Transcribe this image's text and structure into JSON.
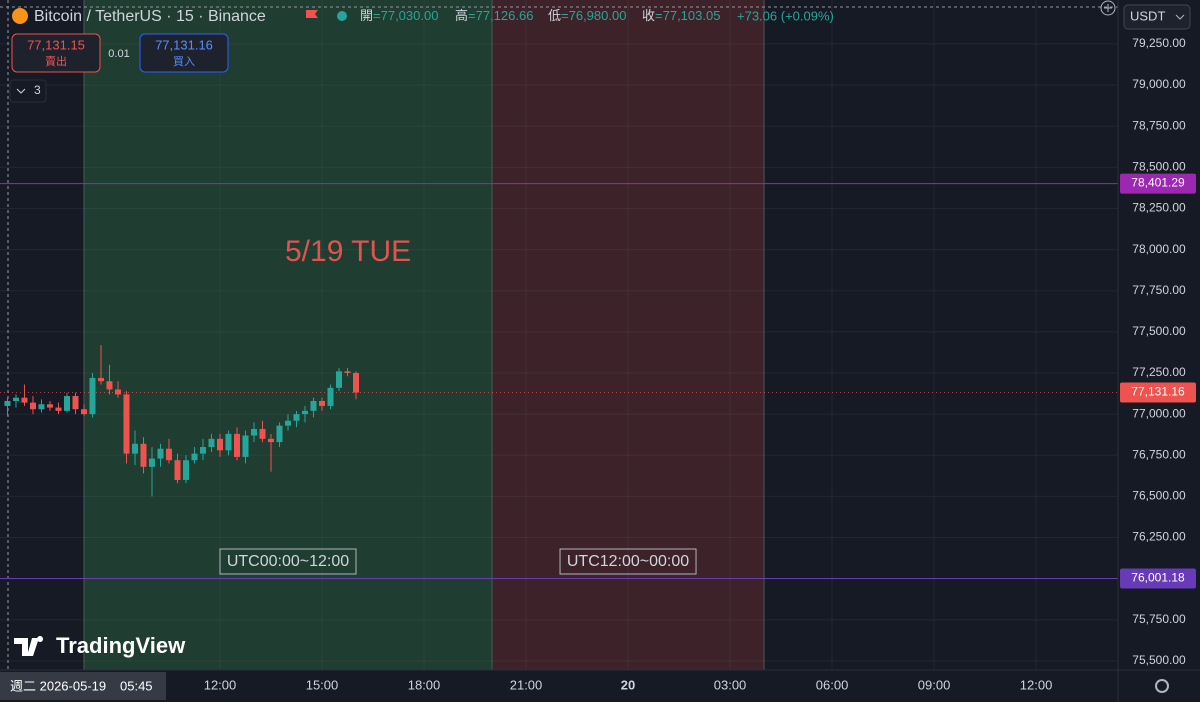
{
  "header": {
    "symbol": "Bitcoin / TetherUS · 15 · Binance",
    "ohlc": [
      {
        "label": "開",
        "value": "=77,030.00"
      },
      {
        "label": "高",
        "value": "=77,126.66"
      },
      {
        "label": "低",
        "value": "=76,980.00"
      },
      {
        "label": "收",
        "value": "=77,103.05"
      }
    ],
    "change": "+73.06 (+0.09%)"
  },
  "trade": {
    "sell_price": "77,131.15",
    "sell_label": "賣出",
    "quantity": "0.01",
    "buy_price": "77,131.16",
    "buy_label": "買入"
  },
  "indicators_count": "3",
  "currency": "USDT",
  "crosshair_date": "週二 2026-05-19",
  "crosshair_time": "05:45",
  "logo": "TradingView",
  "chart_data": {
    "type": "candlestick",
    "x": [
      5.75,
      6,
      6.25,
      6.5,
      6.75,
      7,
      7.25,
      7.5,
      7.75,
      8,
      8.25,
      8.5,
      8.75,
      9,
      9.25,
      9.5,
      9.75,
      10,
      10.25,
      10.5,
      10.75,
      11,
      11.25,
      11.5,
      11.75,
      12,
      12.25,
      12.5,
      12.75,
      13,
      13.25,
      13.5,
      13.75,
      14,
      14.25,
      14.5,
      14.75,
      15,
      15.25,
      15.5,
      15.75,
      16
    ],
    "open": [
      77050,
      77080,
      77100,
      77070,
      77030,
      77060,
      77040,
      77020,
      77110,
      77030,
      77000,
      77220,
      77200,
      77150,
      77120,
      76760,
      76820,
      76680,
      76730,
      76790,
      76720,
      76600,
      76720,
      76760,
      76800,
      76850,
      76780,
      76880,
      76740,
      76870,
      76910,
      76850,
      76830,
      76930,
      76960,
      77000,
      77020,
      77080,
      77050,
      77160,
      77260,
      77250
    ],
    "high": [
      77100,
      77120,
      77180,
      77110,
      77090,
      77080,
      77070,
      77130,
      77130,
      77060,
      77250,
      77420,
      77300,
      77200,
      77140,
      76900,
      76860,
      76800,
      76820,
      76850,
      76760,
      76750,
      76800,
      76850,
      76880,
      76880,
      76900,
      76920,
      76900,
      76950,
      76960,
      76880,
      76950,
      77000,
      77020,
      77050,
      77100,
      77100,
      77180,
      77280,
      77280,
      77260
    ],
    "low": [
      76990,
      77040,
      77050,
      77000,
      77010,
      77020,
      77000,
      77010,
      77000,
      76990,
      76980,
      77180,
      77120,
      77100,
      76700,
      76690,
      76640,
      76500,
      76680,
      76700,
      76580,
      76580,
      76700,
      76720,
      76770,
      76740,
      76750,
      76720,
      76700,
      76830,
      76830,
      76650,
      76800,
      76900,
      76920,
      76950,
      76980,
      77020,
      77030,
      77140,
      77230,
      77090
    ],
    "close": [
      77080,
      77100,
      77070,
      77030,
      77060,
      77040,
      77020,
      77110,
      77030,
      77000,
      77220,
      77200,
      77150,
      77120,
      76760,
      76820,
      76680,
      76730,
      76790,
      76720,
      76600,
      76720,
      76760,
      76800,
      76850,
      76780,
      76880,
      76740,
      76870,
      76910,
      76850,
      76830,
      76930,
      76960,
      77000,
      77020,
      77080,
      77050,
      77160,
      77260,
      77250,
      77131.16
    ],
    "up_color": "#26a69a",
    "down_color": "#ef5350",
    "xlim": [
      5.53,
      38.41
    ],
    "xticks": [
      {
        "value": 12,
        "label": "12:00"
      },
      {
        "value": 15,
        "label": "15:00"
      },
      {
        "value": 18,
        "label": "18:00"
      },
      {
        "value": 21,
        "label": "21:00"
      },
      {
        "value": 24,
        "label": "20"
      },
      {
        "value": 27,
        "label": "03:00"
      },
      {
        "value": 30,
        "label": "06:00"
      },
      {
        "value": 33,
        "label": "09:00"
      },
      {
        "value": 36,
        "label": "12:00"
      }
    ],
    "ylim": [
      75445,
      79517
    ],
    "yticks": [
      {
        "value": 75500,
        "label": "75,500.00"
      },
      {
        "value": 75750,
        "label": "75,750.00"
      },
      {
        "value": 76000,
        "label": "76,000.00"
      },
      {
        "value": 76250,
        "label": "76,250.00"
      },
      {
        "value": 76500,
        "label": "76,500.00"
      },
      {
        "value": 76750,
        "label": "76,750.00"
      },
      {
        "value": 77000,
        "label": "77,000.00"
      },
      {
        "value": 77250,
        "label": "77,250.00"
      },
      {
        "value": 77500,
        "label": "77,500.00"
      },
      {
        "value": 77750,
        "label": "77,750.00"
      },
      {
        "value": 78000,
        "label": "78,000.00"
      },
      {
        "value": 78250,
        "label": "78,250.00"
      },
      {
        "value": 78500,
        "label": "78,500.00"
      },
      {
        "value": 78750,
        "label": "78,750.00"
      },
      {
        "value": 79000,
        "label": "79,000.00"
      },
      {
        "value": 79250,
        "label": "79,250.00"
      }
    ],
    "grid": true,
    "lines": [
      {
        "value": 78401.29,
        "label": "78,401.29",
        "color": "#9c27b0"
      },
      {
        "value": 76001.18,
        "label": "76,001.18",
        "color": "#673ab7"
      }
    ],
    "last_price": {
      "value": 77131.16,
      "label": "77,131.16",
      "color": "#ef5350"
    },
    "zones": [
      {
        "start": 8,
        "end": 20,
        "color": "#1f3d30",
        "label": "UTC00:00~12:00"
      },
      {
        "start": 20,
        "end": 28,
        "color": "#3d2329",
        "label": "UTC12:00~00:00"
      }
    ],
    "annotation": "5/19 TUE"
  }
}
